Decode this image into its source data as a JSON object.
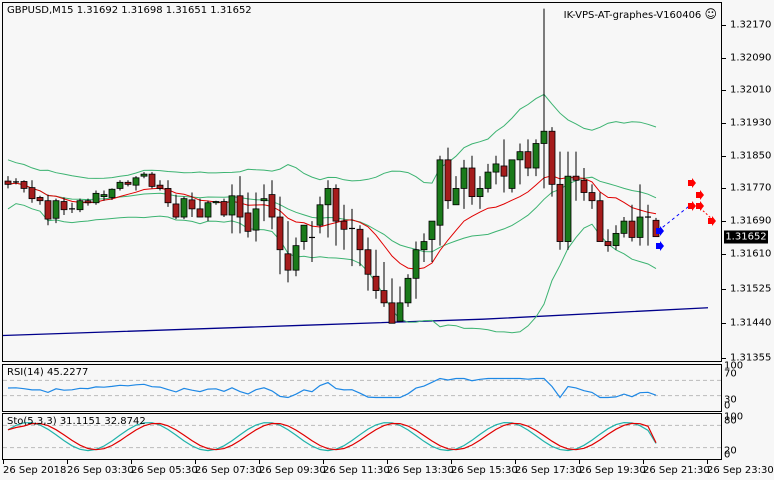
{
  "header": {
    "symbol_label": "GBPUSD,M15  1.31692 1.31698 1.31651 1.31652",
    "server_label": "IK-VPS-AT-graphes-V160406",
    "smiley_icon": "☺"
  },
  "price_axis": {
    "labels": [
      "1.32170",
      "1.32090",
      "1.32010",
      "1.31930",
      "1.31850",
      "1.31770",
      "1.31690",
      "1.31610",
      "1.31525",
      "1.31440",
      "1.31355"
    ],
    "current_price": "1.31652"
  },
  "rsi": {
    "label": "RSI(14) 45.2277",
    "axis_labels": [
      "100",
      "70",
      "30",
      "0"
    ]
  },
  "stochastic": {
    "label": "Sto(5,3,3) 31.1151 32.8742",
    "axis_labels": [
      "100",
      "80",
      "20",
      "0"
    ]
  },
  "time_axis": {
    "labels": [
      "26 Sep 2018",
      "26 Sep 03:30",
      "26 Sep 05:30",
      "26 Sep 07:30",
      "26 Sep 09:30",
      "26 Sep 11:30",
      "26 Sep 13:30",
      "26 Sep 15:30",
      "26 Sep 17:30",
      "26 Sep 19:30",
      "26 Sep 21:30",
      "26 Sep 23:30"
    ]
  },
  "colors": {
    "bull": "#1a7a1a",
    "bear": "#a51c1c",
    "bollinger": "#3cb371",
    "ma_red": "#e00000",
    "ma_blue": "#00008b",
    "rsi_line": "#1e88e5",
    "sto_main": "#20b2aa",
    "sto_signal": "#e00000",
    "arrow_blue": "#0000ff",
    "arrow_red": "#ff0000"
  },
  "chart_data": {
    "type": "candlestick",
    "title": "GBPUSD,M15",
    "ohlc_current": {
      "open": 1.31692,
      "high": 1.31698,
      "low": 1.31651,
      "close": 1.31652
    },
    "ylim": [
      1.31355,
      1.3221
    ],
    "y_ticks": [
      1.3217,
      1.3209,
      1.3201,
      1.3193,
      1.3185,
      1.3177,
      1.3169,
      1.3161,
      1.31525,
      1.3144,
      1.31355
    ],
    "x_ticks": [
      "26 Sep 2018",
      "26 Sep 03:30",
      "26 Sep 05:30",
      "26 Sep 07:30",
      "26 Sep 09:30",
      "26 Sep 11:30",
      "26 Sep 13:30",
      "26 Sep 15:30",
      "26 Sep 17:30",
      "26 Sep 19:30",
      "26 Sep 21:30",
      "26 Sep 23:30"
    ],
    "candles": [
      [
        1.31788,
        1.318,
        1.3177,
        1.3178
      ],
      [
        1.31785,
        1.31795,
        1.3178,
        1.31786
      ],
      [
        1.31787,
        1.3179,
        1.3176,
        1.3177
      ],
      [
        1.31772,
        1.3179,
        1.31735,
        1.31745
      ],
      [
        1.31748,
        1.31752,
        1.3173,
        1.3174
      ],
      [
        1.3174,
        1.31755,
        1.3168,
        1.31695
      ],
      [
        1.31697,
        1.31745,
        1.31685,
        1.3174
      ],
      [
        1.31738,
        1.31748,
        1.31705,
        1.31718
      ],
      [
        1.31718,
        1.31735,
        1.3171,
        1.3172
      ],
      [
        1.31718,
        1.31745,
        1.31712,
        1.3174
      ],
      [
        1.3174,
        1.31745,
        1.31728,
        1.31735
      ],
      [
        1.31735,
        1.31765,
        1.3173,
        1.31758
      ],
      [
        1.3175,
        1.31765,
        1.3174,
        1.31755
      ],
      [
        1.31748,
        1.3177,
        1.31742,
        1.31768
      ],
      [
        1.3177,
        1.3179,
        1.31765,
        1.31785
      ],
      [
        1.31785,
        1.3179,
        1.31775,
        1.3178
      ],
      [
        1.31778,
        1.318,
        1.31765,
        1.31796
      ],
      [
        1.318,
        1.3181,
        1.31795,
        1.31805
      ],
      [
        1.31805,
        1.3181,
        1.3177,
        1.31775
      ],
      [
        1.31778,
        1.3179,
        1.31765,
        1.3177
      ],
      [
        1.3177,
        1.3179,
        1.31725,
        1.31735
      ],
      [
        1.31732,
        1.31755,
        1.31695,
        1.317
      ],
      [
        1.317,
        1.3175,
        1.31695,
        1.31745
      ],
      [
        1.31742,
        1.3176,
        1.317,
        1.3172
      ],
      [
        1.3172,
        1.31745,
        1.317,
        1.317
      ],
      [
        1.317,
        1.3174,
        1.3169,
        1.31735
      ],
      [
        1.31735,
        1.3174,
        1.3173,
        1.31738
      ],
      [
        1.31738,
        1.31745,
        1.317,
        1.31705
      ],
      [
        1.31705,
        1.3178,
        1.3166,
        1.31752
      ],
      [
        1.31752,
        1.318,
        1.3166,
        1.317
      ],
      [
        1.3171,
        1.3176,
        1.3165,
        1.31665
      ],
      [
        1.31668,
        1.3176,
        1.3164,
        1.3172
      ],
      [
        1.3174,
        1.3178,
        1.3169,
        1.31745
      ],
      [
        1.31755,
        1.3179,
        1.3167,
        1.317
      ],
      [
        1.317,
        1.3175,
        1.3156,
        1.3162
      ],
      [
        1.3161,
        1.3169,
        1.3154,
        1.3157
      ],
      [
        1.3157,
        1.3165,
        1.31555,
        1.3163
      ],
      [
        1.3164,
        1.3168,
        1.3162,
        1.3168
      ],
      [
        1.3165,
        1.3169,
        1.3159,
        1.3165
      ],
      [
        1.3168,
        1.3175,
        1.3166,
        1.3173
      ],
      [
        1.3173,
        1.3179,
        1.3165,
        1.3177
      ],
      [
        1.3177,
        1.3178,
        1.3163,
        1.3169
      ],
      [
        1.3169,
        1.3173,
        1.3162,
        1.3167
      ],
      [
        1.31672,
        1.3172,
        1.3158,
        1.3167
      ],
      [
        1.3167,
        1.3168,
        1.3158,
        1.3162
      ],
      [
        1.3162,
        1.3165,
        1.3152,
        1.3156
      ],
      [
        1.31555,
        1.3162,
        1.315,
        1.3152
      ],
      [
        1.3152,
        1.3159,
        1.3148,
        1.3149
      ],
      [
        1.3149,
        1.3155,
        1.3144,
        1.3144
      ],
      [
        1.31445,
        1.3153,
        1.3145,
        1.3149
      ],
      [
        1.3149,
        1.3156,
        1.3148,
        1.3155
      ],
      [
        1.3155,
        1.3164,
        1.315,
        1.3162
      ],
      [
        1.3162,
        1.3166,
        1.3159,
        1.3164
      ],
      [
        1.31645,
        1.3169,
        1.3159,
        1.3169
      ],
      [
        1.3168,
        1.3185,
        1.3163,
        1.3184
      ],
      [
        1.3184,
        1.3187,
        1.3172,
        1.3174
      ],
      [
        1.3173,
        1.318,
        1.3173,
        1.3177
      ],
      [
        1.3177,
        1.3184,
        1.3172,
        1.3182
      ],
      [
        1.3182,
        1.3185,
        1.3173,
        1.3175
      ],
      [
        1.3175,
        1.318,
        1.3172,
        1.3177
      ],
      [
        1.3177,
        1.3183,
        1.3176,
        1.3181
      ],
      [
        1.3181,
        1.3185,
        1.3178,
        1.3183
      ],
      [
        1.31825,
        1.3189,
        1.3176,
        1.318
      ],
      [
        1.3177,
        1.3184,
        1.3176,
        1.3184
      ],
      [
        1.3184,
        1.3188,
        1.3178,
        1.3186
      ],
      [
        1.3186,
        1.3189,
        1.318,
        1.3182
      ],
      [
        1.3182,
        1.3189,
        1.318,
        1.3188
      ],
      [
        1.3188,
        1.3221,
        1.3177,
        1.3191
      ],
      [
        1.3191,
        1.3192,
        1.3175,
        1.3178
      ],
      [
        1.3178,
        1.3186,
        1.3162,
        1.3164
      ],
      [
        1.3164,
        1.3186,
        1.3162,
        1.318
      ],
      [
        1.318,
        1.3186,
        1.3174,
        1.3179
      ],
      [
        1.3179,
        1.3182,
        1.3174,
        1.3176
      ],
      [
        1.3176,
        1.3178,
        1.3172,
        1.3174
      ],
      [
        1.3174,
        1.3176,
        1.3166,
        1.3164
      ],
      [
        1.3164,
        1.3167,
        1.31615,
        1.3163
      ],
      [
        1.3163,
        1.3168,
        1.3162,
        1.3166
      ],
      [
        1.3166,
        1.317,
        1.3165,
        1.3169
      ],
      [
        1.3169,
        1.3173,
        1.3164,
        1.3165
      ],
      [
        1.3165,
        1.3178,
        1.3163,
        1.317
      ],
      [
        1.317,
        1.3173,
        1.3163,
        1.317
      ],
      [
        1.31692,
        1.31698,
        1.31651,
        1.31652
      ]
    ],
    "indicators": {
      "bollinger_bands": "green upper/lower bands",
      "moving_average_red": "mid-term MA",
      "moving_average_blue": "long-term MA rising from ~1.3141 to ~1.3148",
      "rsi_14_last": 45.2277,
      "stochastic_5_3_3": {
        "main": 31.1151,
        "signal": 32.8742
      }
    }
  }
}
